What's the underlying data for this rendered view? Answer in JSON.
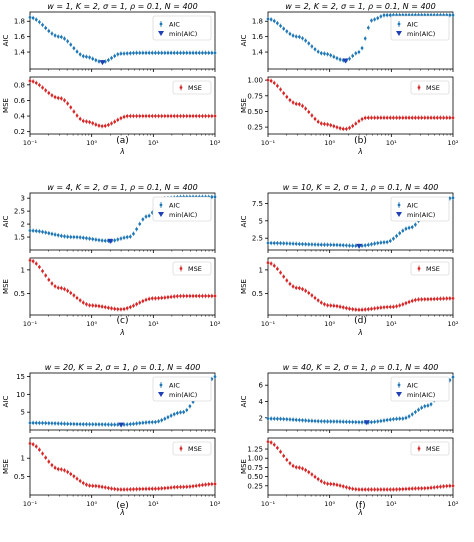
{
  "figure": {
    "xlabel": "λ",
    "xticks": [
      "10⁻¹",
      "10⁰",
      "10¹",
      "10²"
    ],
    "legend_aic": "AIC",
    "legend_min": "min(AIC)",
    "legend_mse": "MSE",
    "ylabel_top": "AIC",
    "ylabel_bottom": "MSE",
    "colors": {
      "aic": "#1f77b4",
      "min": "#1f3fb4",
      "mse": "#d62728"
    }
  },
  "chart_data": [
    {
      "type": "scatter",
      "letter": "(a)",
      "title": "w = 1, K = 2, σ = 1, ρ = 0.1, N = 400",
      "xscale": "log",
      "xlim": [
        0.1,
        100
      ],
      "aic": {
        "ylim": [
          1.18,
          1.92
        ],
        "yticks": [
          1.4,
          1.6,
          1.8
        ],
        "curve": [
          [
            0.1,
            1.85
          ],
          [
            0.3,
            1.6
          ],
          [
            0.8,
            1.34
          ],
          [
            1.5,
            1.27
          ],
          [
            3,
            1.38
          ],
          [
            6,
            1.39
          ],
          [
            100,
            1.39
          ]
        ],
        "min": [
          1.5,
          1.27
        ]
      },
      "mse": {
        "ylim": [
          0.17,
          0.9
        ],
        "yticks": [
          0.2,
          0.4,
          0.6,
          0.8
        ],
        "curve": [
          [
            0.1,
            0.85
          ],
          [
            0.3,
            0.63
          ],
          [
            0.8,
            0.33
          ],
          [
            1.5,
            0.27
          ],
          [
            4,
            0.4
          ],
          [
            100,
            0.4
          ]
        ]
      }
    },
    {
      "type": "scatter",
      "letter": "(b)",
      "title": "w = 2, K = 2, σ = 1, ρ = 0.1, N = 400",
      "xscale": "log",
      "xlim": [
        0.1,
        100
      ],
      "aic": {
        "ylim": [
          1.18,
          1.92
        ],
        "yticks": [
          1.4,
          1.6,
          1.8
        ],
        "curve": [
          [
            0.1,
            1.83
          ],
          [
            0.3,
            1.6
          ],
          [
            0.8,
            1.38
          ],
          [
            1.8,
            1.29
          ],
          [
            3,
            1.4
          ],
          [
            5,
            1.82
          ],
          [
            8,
            1.88
          ],
          [
            100,
            1.88
          ]
        ],
        "min": [
          1.8,
          1.29
        ]
      },
      "mse": {
        "ylim": [
          0.14,
          1.05
        ],
        "yticks": [
          0.25,
          0.5,
          0.75,
          1.0
        ],
        "ytick_labels": [
          "0.25",
          "0.50",
          "0.75",
          "1.00"
        ],
        "curve": [
          [
            0.1,
            1.0
          ],
          [
            0.3,
            0.62
          ],
          [
            0.8,
            0.3
          ],
          [
            1.8,
            0.22
          ],
          [
            4,
            0.4
          ],
          [
            100,
            0.4
          ]
        ]
      }
    },
    {
      "type": "scatter",
      "letter": "(c)",
      "title": "w = 4, K = 2, σ = 1, ρ = 0.1, N = 400",
      "xscale": "log",
      "xlim": [
        0.1,
        100
      ],
      "aic": {
        "ylim": [
          1.0,
          3.2
        ],
        "yticks": [
          1.5,
          2.0,
          2.5,
          3.0
        ],
        "curve": [
          [
            0.1,
            1.75
          ],
          [
            0.5,
            1.5
          ],
          [
            2,
            1.35
          ],
          [
            4,
            1.5
          ],
          [
            8,
            2.3
          ],
          [
            15,
            3.0
          ],
          [
            30,
            3.05
          ],
          [
            100,
            3.05
          ]
        ],
        "min": [
          2,
          1.35
        ]
      },
      "mse": {
        "ylim": [
          0.05,
          1.25
        ],
        "yticks": [
          0.5,
          1.0
        ],
        "curve": [
          [
            0.1,
            1.2
          ],
          [
            0.3,
            0.62
          ],
          [
            1,
            0.25
          ],
          [
            3,
            0.17
          ],
          [
            10,
            0.4
          ],
          [
            30,
            0.45
          ],
          [
            100,
            0.45
          ]
        ]
      }
    },
    {
      "type": "scatter",
      "letter": "(d)",
      "title": "w = 10, K = 2, σ = 1, ρ = 0.1, N = 400",
      "xscale": "log",
      "xlim": [
        0.1,
        100
      ],
      "aic": {
        "ylim": [
          0.8,
          9.0
        ],
        "yticks": [
          2.5,
          5.0,
          7.5
        ],
        "curve": [
          [
            0.1,
            1.8
          ],
          [
            1,
            1.55
          ],
          [
            3,
            1.4
          ],
          [
            8,
            1.9
          ],
          [
            20,
            4.0
          ],
          [
            50,
            7.5
          ],
          [
            100,
            8.3
          ]
        ],
        "min": [
          3,
          1.4
        ]
      },
      "mse": {
        "ylim": [
          0.05,
          1.25
        ],
        "yticks": [
          0.5,
          1.0
        ],
        "curve": [
          [
            0.1,
            1.15
          ],
          [
            0.3,
            0.62
          ],
          [
            1,
            0.25
          ],
          [
            3,
            0.16
          ],
          [
            10,
            0.22
          ],
          [
            30,
            0.38
          ],
          [
            100,
            0.4
          ]
        ]
      }
    },
    {
      "type": "scatter",
      "letter": "(e)",
      "title": "w = 20, K = 2, σ = 1, ρ = 0.1, N = 400",
      "xscale": "log",
      "xlim": [
        0.1,
        100
      ],
      "aic": {
        "ylim": [
          0.0,
          16.0
        ],
        "yticks": [
          5,
          10,
          15
        ],
        "curve": [
          [
            0.1,
            2.0
          ],
          [
            1,
            1.6
          ],
          [
            3,
            1.5
          ],
          [
            10,
            2.2
          ],
          [
            30,
            5.0
          ],
          [
            60,
            10.0
          ],
          [
            100,
            15.0
          ]
        ],
        "min": [
          3,
          1.5
        ]
      },
      "mse": {
        "ylim": [
          0.0,
          1.55
        ],
        "yticks": [
          0.5,
          1.0
        ],
        "curve": [
          [
            0.1,
            1.4
          ],
          [
            0.3,
            0.7
          ],
          [
            1,
            0.25
          ],
          [
            3,
            0.15
          ],
          [
            10,
            0.17
          ],
          [
            30,
            0.22
          ],
          [
            100,
            0.3
          ]
        ]
      }
    },
    {
      "type": "scatter",
      "letter": "(f)",
      "title": "w = 40, K = 2, σ = 1, ρ = 0.1, N = 400",
      "xscale": "log",
      "xlim": [
        0.1,
        100
      ],
      "aic": {
        "ylim": [
          0.5,
          7.5
        ],
        "yticks": [
          2,
          4,
          6
        ],
        "curve": [
          [
            0.1,
            1.9
          ],
          [
            1,
            1.55
          ],
          [
            4,
            1.45
          ],
          [
            15,
            1.9
          ],
          [
            40,
            3.5
          ],
          [
            70,
            5.5
          ],
          [
            100,
            7.0
          ]
        ],
        "min": [
          4,
          1.45
        ]
      },
      "mse": {
        "ylim": [
          0.0,
          1.55
        ],
        "yticks": [
          0.25,
          0.5,
          0.75,
          1.0,
          1.25
        ],
        "ytick_labels": [
          "0.25",
          "0.50",
          "0.75",
          "1.00",
          "1.25"
        ],
        "curve": [
          [
            0.1,
            1.45
          ],
          [
            0.3,
            0.75
          ],
          [
            1,
            0.3
          ],
          [
            3,
            0.15
          ],
          [
            10,
            0.15
          ],
          [
            30,
            0.18
          ],
          [
            100,
            0.25
          ]
        ]
      }
    }
  ]
}
